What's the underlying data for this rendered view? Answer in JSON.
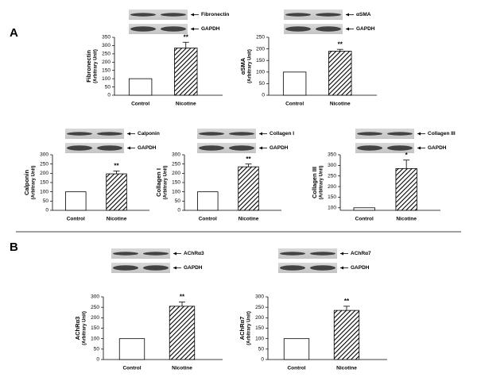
{
  "panel_labels": [
    "A",
    "B"
  ],
  "chart_data": [
    {
      "type": "bar",
      "ylabel": "Fibronectin",
      "ylabel_sub": "(Arbitrary Unit)",
      "blots": [
        "Fibronectin",
        "GAPDH"
      ],
      "categories": [
        "Control",
        "Nicotine"
      ],
      "values": [
        100,
        285
      ],
      "errors": [
        0,
        35
      ],
      "annotation": "**",
      "ylim": [
        0,
        350
      ],
      "yticks": [
        0,
        50,
        100,
        150,
        200,
        250,
        300,
        350
      ]
    },
    {
      "type": "bar",
      "ylabel": "αSMA",
      "ylabel_sub": "(Arbitrary Unit)",
      "blots": [
        "αSMA",
        "GAPDH"
      ],
      "categories": [
        "Control",
        "Nicotine"
      ],
      "values": [
        100,
        190
      ],
      "errors": [
        0,
        8
      ],
      "annotation": "**",
      "ylim": [
        0,
        250
      ],
      "yticks": [
        0,
        50,
        100,
        150,
        200,
        250
      ]
    },
    {
      "type": "bar",
      "ylabel": "Calponin",
      "ylabel_sub": "(Arbitrary Unit)",
      "blots": [
        "Calponin",
        "GAPDH"
      ],
      "categories": [
        "Control",
        "Nicotine"
      ],
      "values": [
        100,
        197
      ],
      "errors": [
        0,
        15
      ],
      "annotation": "**",
      "ylim": [
        0,
        300
      ],
      "yticks": [
        0,
        50,
        100,
        150,
        200,
        250,
        300
      ]
    },
    {
      "type": "bar",
      "ylabel": "Collagen I",
      "ylabel_sub": "(Arbitrary Unit)",
      "blots": [
        "Collagen I",
        "GAPDH"
      ],
      "categories": [
        "Control",
        "Nicotine"
      ],
      "values": [
        100,
        235
      ],
      "errors": [
        0,
        15
      ],
      "annotation": "**",
      "ylim": [
        0,
        300
      ],
      "yticks": [
        0,
        50,
        100,
        150,
        200,
        250,
        300
      ]
    },
    {
      "type": "bar",
      "ylabel": "Collagen III",
      "ylabel_sub": "(Arbitrary Unit)",
      "blots": [
        "Collagen III",
        "GAPDH"
      ],
      "categories": [
        "Control",
        "Nicotine"
      ],
      "values": [
        100,
        285
      ],
      "errors": [
        0,
        40
      ],
      "annotation": "*",
      "ylim": [
        88,
        350
      ],
      "yticks": [
        100,
        150,
        200,
        250,
        300,
        350
      ]
    },
    {
      "type": "bar",
      "ylabel": "AChRα3",
      "ylabel_sub": "(Arbitrary Unit)",
      "blots": [
        "AChRα3",
        "GAPDH"
      ],
      "categories": [
        "Control",
        "Nicotine"
      ],
      "values": [
        100,
        255
      ],
      "errors": [
        0,
        20
      ],
      "annotation": "**",
      "ylim": [
        0,
        300
      ],
      "yticks": [
        0,
        50,
        100,
        150,
        200,
        250,
        300
      ]
    },
    {
      "type": "bar",
      "ylabel": "AChRα7",
      "ylabel_sub": "(Arbitrary Unit)",
      "blots": [
        "AChRα7",
        "GAPDH"
      ],
      "categories": [
        "Control",
        "Nicotine"
      ],
      "values": [
        100,
        235
      ],
      "errors": [
        0,
        20
      ],
      "annotation": "**",
      "ylim": [
        0,
        300
      ],
      "yticks": [
        0,
        50,
        100,
        150,
        200,
        250,
        300
      ]
    }
  ]
}
